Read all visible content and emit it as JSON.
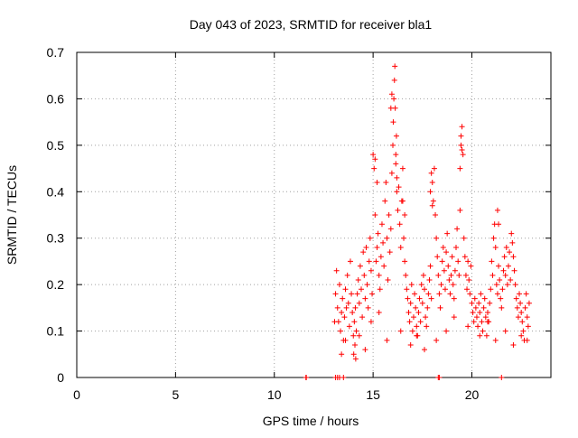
{
  "chart_data": {
    "type": "scatter",
    "title": "Day 043 of 2023, SRMTID for receiver bla1",
    "xlabel": "GPS time / hours",
    "ylabel": "SRMTID / TECUs",
    "xlim": [
      0,
      24
    ],
    "ylim": [
      0,
      0.7
    ],
    "xticks": [
      0,
      5,
      10,
      15,
      20
    ],
    "yticks": [
      0,
      0.1,
      0.2,
      0.3,
      0.4,
      0.5,
      0.6,
      0.7
    ],
    "xtick_labels": [
      "0",
      "5",
      "10",
      "15",
      "20"
    ],
    "ytick_labels": [
      "0",
      "0.1",
      "0.2",
      "0.3",
      "0.4",
      "0.5",
      "0.6",
      "0.7"
    ],
    "grid": true,
    "marker": "+",
    "color": "#ff0000",
    "series": [
      {
        "name": "SRMTID",
        "x": [
          11.6,
          11.62,
          13.1,
          13.2,
          13.3,
          13.5,
          18.3,
          18.35,
          21.5,
          13.05,
          13.1,
          13.15,
          13.2,
          13.25,
          13.3,
          13.35,
          13.4,
          13.45,
          13.5,
          13.55,
          13.6,
          13.65,
          13.7,
          13.75,
          13.8,
          13.85,
          13.9,
          13.95,
          14.0,
          14.02,
          14.05,
          14.08,
          14.1,
          14.12,
          14.15,
          14.2,
          14.25,
          14.3,
          14.35,
          14.4,
          14.45,
          14.5,
          14.55,
          14.6,
          14.65,
          14.7,
          14.75,
          14.8,
          14.85,
          14.9,
          14.95,
          15.0,
          15.05,
          15.1,
          15.15,
          15.2,
          15.25,
          15.3,
          15.35,
          15.4,
          15.45,
          15.5,
          15.55,
          15.6,
          15.65,
          15.7,
          15.75,
          15.8,
          15.85,
          15.9,
          15.95,
          16.0,
          16.02,
          16.05,
          16.08,
          16.1,
          16.12,
          16.15,
          16.2,
          16.25,
          16.3,
          16.35,
          16.4,
          16.45,
          16.5,
          16.55,
          16.6,
          16.65,
          16.7,
          16.75,
          16.8,
          16.85,
          16.9,
          16.95,
          17.0,
          17.05,
          17.1,
          17.15,
          17.2,
          17.25,
          17.3,
          17.35,
          17.4,
          17.45,
          17.5,
          17.55,
          17.6,
          17.65,
          17.7,
          17.75,
          17.8,
          17.85,
          17.9,
          17.95,
          18.0,
          18.05,
          18.1,
          18.15,
          18.2,
          18.25,
          18.3,
          18.35,
          18.4,
          18.45,
          18.5,
          18.55,
          18.6,
          18.65,
          18.7,
          18.75,
          18.8,
          18.85,
          18.9,
          18.95,
          19.0,
          19.05,
          19.1,
          19.15,
          19.2,
          19.25,
          19.3,
          19.35,
          19.4,
          19.45,
          19.5,
          19.55,
          19.6,
          19.65,
          19.7,
          19.75,
          19.8,
          19.85,
          19.9,
          19.95,
          20.0,
          20.05,
          20.1,
          20.15,
          20.2,
          20.25,
          20.3,
          20.35,
          20.4,
          20.45,
          20.5,
          20.55,
          20.6,
          20.65,
          20.7,
          20.75,
          20.8,
          20.85,
          20.9,
          20.95,
          21.0,
          21.05,
          21.1,
          21.15,
          21.2,
          21.25,
          21.3,
          21.35,
          21.4,
          21.45,
          21.5,
          21.55,
          21.6,
          21.65,
          21.7,
          21.75,
          21.8,
          21.85,
          21.9,
          21.95,
          22.0,
          22.05,
          22.1,
          22.15,
          22.2,
          22.25,
          22.3,
          22.35,
          22.4,
          22.45,
          22.5,
          22.55,
          22.6,
          22.65,
          22.7,
          22.75,
          22.8,
          22.85,
          22.9,
          15.1,
          15.2,
          15.9,
          15.95,
          16.15,
          16.18,
          16.2,
          16.5,
          16.6,
          17.9,
          17.95,
          18.0,
          19.4,
          19.45,
          19.5,
          21.3,
          21.35,
          13.4,
          13.6,
          14.3,
          14.6,
          14.9,
          15.3,
          15.7,
          16.4,
          16.9,
          17.2,
          17.6,
          18.2,
          18.7,
          19.1,
          19.8,
          20.4,
          20.8,
          21.2,
          21.7,
          22.1,
          22.5,
          22.8
        ],
        "y": [
          0.0,
          0.0,
          0.0,
          0.0,
          0.0,
          0.0,
          0.0,
          0.0,
          0.0,
          0.12,
          0.18,
          0.23,
          0.15,
          0.12,
          0.2,
          0.1,
          0.14,
          0.17,
          0.08,
          0.13,
          0.19,
          0.15,
          0.22,
          0.16,
          0.11,
          0.25,
          0.18,
          0.14,
          0.09,
          0.05,
          0.12,
          0.07,
          0.15,
          0.04,
          0.1,
          0.18,
          0.21,
          0.16,
          0.24,
          0.19,
          0.13,
          0.27,
          0.22,
          0.17,
          0.28,
          0.2,
          0.15,
          0.25,
          0.3,
          0.23,
          0.18,
          0.48,
          0.45,
          0.35,
          0.25,
          0.28,
          0.31,
          0.22,
          0.19,
          0.26,
          0.33,
          0.29,
          0.24,
          0.38,
          0.42,
          0.3,
          0.21,
          0.35,
          0.27,
          0.32,
          0.44,
          0.5,
          0.55,
          0.6,
          0.64,
          0.67,
          0.58,
          0.46,
          0.4,
          0.36,
          0.41,
          0.33,
          0.28,
          0.38,
          0.45,
          0.3,
          0.25,
          0.22,
          0.19,
          0.17,
          0.14,
          0.12,
          0.16,
          0.2,
          0.1,
          0.13,
          0.18,
          0.15,
          0.11,
          0.09,
          0.14,
          0.17,
          0.12,
          0.2,
          0.16,
          0.22,
          0.19,
          0.13,
          0.11,
          0.15,
          0.18,
          0.21,
          0.24,
          0.17,
          0.42,
          0.38,
          0.45,
          0.35,
          0.3,
          0.26,
          0.22,
          0.18,
          0.15,
          0.2,
          0.25,
          0.28,
          0.23,
          0.19,
          0.27,
          0.31,
          0.24,
          0.21,
          0.18,
          0.22,
          0.26,
          0.2,
          0.17,
          0.23,
          0.28,
          0.32,
          0.25,
          0.22,
          0.45,
          0.5,
          0.54,
          0.48,
          0.3,
          0.26,
          0.22,
          0.19,
          0.25,
          0.21,
          0.18,
          0.24,
          0.16,
          0.14,
          0.12,
          0.17,
          0.15,
          0.13,
          0.11,
          0.16,
          0.14,
          0.18,
          0.12,
          0.1,
          0.15,
          0.17,
          0.13,
          0.09,
          0.14,
          0.12,
          0.16,
          0.19,
          0.25,
          0.22,
          0.3,
          0.33,
          0.28,
          0.2,
          0.18,
          0.24,
          0.21,
          0.17,
          0.15,
          0.19,
          0.23,
          0.26,
          0.22,
          0.28,
          0.2,
          0.24,
          0.27,
          0.21,
          0.31,
          0.29,
          0.26,
          0.23,
          0.2,
          0.17,
          0.15,
          0.13,
          0.18,
          0.16,
          0.14,
          0.12,
          0.1,
          0.08,
          0.15,
          0.18,
          0.13,
          0.11,
          0.16,
          0.47,
          0.42,
          0.58,
          0.61,
          0.48,
          0.52,
          0.43,
          0.38,
          0.35,
          0.4,
          0.44,
          0.37,
          0.36,
          0.52,
          0.49,
          0.36,
          0.33,
          0.05,
          0.08,
          0.09,
          0.06,
          0.12,
          0.14,
          0.08,
          0.1,
          0.07,
          0.09,
          0.06,
          0.08,
          0.1,
          0.13,
          0.11,
          0.09,
          0.12,
          0.08,
          0.1,
          0.07,
          0.09,
          0.08
        ]
      }
    ]
  }
}
